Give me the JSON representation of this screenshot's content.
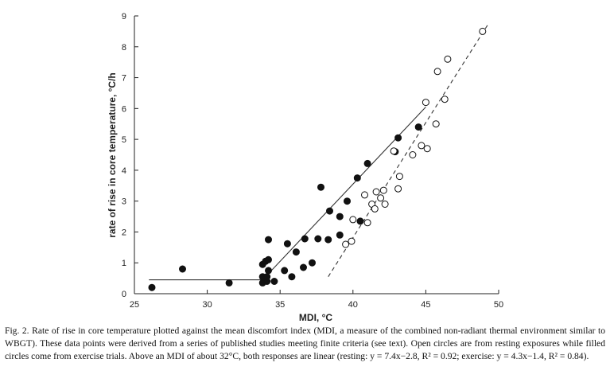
{
  "chart_data": {
    "type": "scatter",
    "xlabel": "MDI, °C",
    "ylabel": "rate of rise in core temperature, °C/h",
    "xlim": [
      25,
      50
    ],
    "ylim": [
      0,
      9
    ],
    "xticks": [
      "25",
      "30",
      "35",
      "40",
      "45",
      "50"
    ],
    "yticks": [
      "0",
      "1",
      "2",
      "3",
      "4",
      "5",
      "6",
      "7",
      "8",
      "9"
    ],
    "series": [
      {
        "marker": "filled-circle",
        "points": [
          [
            26.2,
            0.2
          ],
          [
            28.3,
            0.8
          ],
          [
            31.5,
            0.35
          ],
          [
            33.8,
            0.35
          ],
          [
            33.8,
            0.55
          ],
          [
            33.8,
            0.95
          ],
          [
            34.0,
            1.05
          ],
          [
            34.1,
            0.4
          ],
          [
            34.1,
            0.55
          ],
          [
            34.2,
            0.75
          ],
          [
            34.2,
            1.1
          ],
          [
            34.2,
            1.75
          ],
          [
            34.6,
            0.4
          ],
          [
            35.3,
            0.75
          ],
          [
            35.5,
            1.62
          ],
          [
            35.8,
            0.55
          ],
          [
            36.1,
            1.35
          ],
          [
            36.6,
            0.85
          ],
          [
            36.7,
            1.78
          ],
          [
            37.2,
            1.0
          ],
          [
            37.6,
            1.78
          ],
          [
            37.8,
            3.45
          ],
          [
            38.3,
            1.75
          ],
          [
            38.4,
            2.68
          ],
          [
            39.1,
            1.9
          ],
          [
            39.1,
            2.5
          ],
          [
            39.6,
            3.0
          ],
          [
            40.3,
            3.75
          ],
          [
            40.5,
            2.35
          ],
          [
            41.0,
            4.22
          ],
          [
            42.9,
            4.6
          ],
          [
            43.1,
            5.05
          ],
          [
            44.5,
            5.4
          ]
        ]
      },
      {
        "marker": "open-circle",
        "points": [
          [
            39.5,
            1.6
          ],
          [
            39.9,
            1.7
          ],
          [
            40.0,
            2.4
          ],
          [
            40.8,
            3.2
          ],
          [
            41.0,
            2.3
          ],
          [
            41.3,
            2.9
          ],
          [
            41.5,
            2.75
          ],
          [
            41.6,
            3.3
          ],
          [
            41.9,
            3.1
          ],
          [
            42.1,
            3.35
          ],
          [
            42.2,
            2.9
          ],
          [
            42.8,
            4.62
          ],
          [
            43.1,
            3.4
          ],
          [
            43.2,
            3.8
          ],
          [
            44.1,
            4.5
          ],
          [
            44.7,
            4.8
          ],
          [
            45.0,
            6.2
          ],
          [
            45.1,
            4.7
          ],
          [
            45.7,
            5.5
          ],
          [
            45.8,
            7.2
          ],
          [
            46.3,
            6.3
          ],
          [
            46.5,
            7.6
          ],
          [
            48.9,
            8.5
          ]
        ]
      }
    ],
    "lines": [
      {
        "style": "solid",
        "points": [
          [
            26,
            0.45
          ],
          [
            33.8,
            0.45
          ],
          [
            45.0,
            6.05
          ]
        ]
      },
      {
        "style": "dashed",
        "points": [
          [
            38.3,
            0.55
          ],
          [
            49.3,
            8.75
          ]
        ]
      }
    ],
    "caption": "Fig. 2. Rate of rise in core temperature plotted against the mean discomfort index (MDI, a measure of the combined non-radiant thermal environment similar to WBGT). These data points were derived from a series of published studies meeting finite criteria (see text). Open circles are from resting exposures while filled circles come from exercise trials. Above an MDI of about 32°C, both responses are linear (resting: y = 7.4x−2.8, R² = 0.92; exercise: y = 4.3x−1.4, R² = 0.84)."
  }
}
